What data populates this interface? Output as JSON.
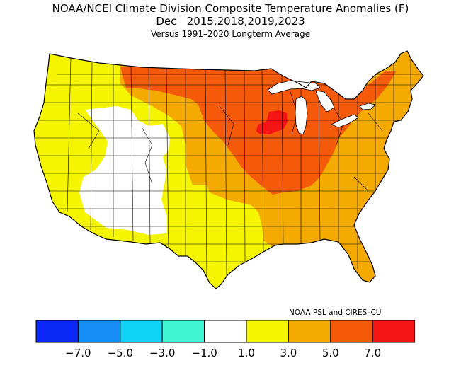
{
  "title": {
    "line1": "NOAA/NCEI Climate Division Composite Temperature Anomalies (F)",
    "line2": "Dec   2015,2018,2019,2023",
    "line3": "Versus 1991–2020 Longterm Average"
  },
  "credit": "NOAA PSL and CIRES–CU",
  "legend": {
    "colors": [
      "#0a28f5",
      "#168cf5",
      "#10d2f5",
      "#40f5d2",
      "#ffffff",
      "#f5f500",
      "#f5aa00",
      "#f55a0a",
      "#f51414"
    ],
    "tick_labels": [
      "−7.0",
      "−5.0",
      "−3.0",
      "−1.0",
      "1.0",
      "3.0",
      "5.0",
      "7.0"
    ]
  },
  "map": {
    "region_colors": {
      "white": "#ffffff",
      "yellow": "#f5f500",
      "orange": "#f5aa00",
      "dark_orange": "#f55a0a",
      "red": "#f51414"
    }
  }
}
